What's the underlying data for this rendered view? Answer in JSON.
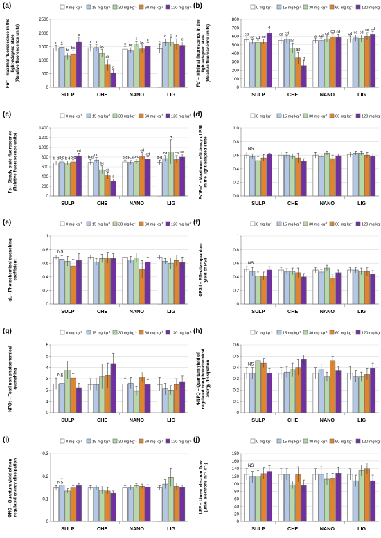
{
  "figure": {
    "categories": [
      "SULP",
      "CHE",
      "NANO",
      "LIG"
    ],
    "legend": [
      {
        "label": "0 mg kg",
        "sup": "-1",
        "color": "#ffffff"
      },
      {
        "label": "15 mg kg",
        "sup": "-1",
        "color": "#b4c8e6"
      },
      {
        "label": "30 mg kg",
        "sup": "-1",
        "color": "#b7d7a8"
      },
      {
        "label": "60 mg kg",
        "sup": "-1",
        "color": "#e0852f"
      },
      {
        "label": "120 mg kg",
        "sup": "-1",
        "color": "#7030a0"
      }
    ]
  },
  "chart_data": [
    {
      "panel": "(a)",
      "type": "bar",
      "ylabel": [
        "Fm' – Maximal fluorescence in the",
        "light-adapted state",
        "(Relative fluorescence units)"
      ],
      "ylim": [
        0,
        2500
      ],
      "yticks": [
        "0",
        "500",
        "1000",
        "1500",
        "2000",
        "2500"
      ],
      "categories": [
        "SULP",
        "CHE",
        "NANO",
        "LIG"
      ],
      "series": [
        {
          "name": "0 mg kg-1",
          "values": [
            1440,
            1450,
            1400,
            1420
          ],
          "errors": [
            100,
            130,
            100,
            150
          ]
        },
        {
          "name": "15 mg kg-1",
          "values": [
            1470,
            1460,
            1360,
            1650
          ],
          "errors": [
            100,
            120,
            90,
            130
          ]
        },
        {
          "name": "30 mg kg-1",
          "values": [
            1150,
            1250,
            1600,
            1660
          ],
          "errors": [
            120,
            150,
            100,
            160
          ]
        },
        {
          "name": "60 mg kg-1",
          "values": [
            1220,
            820,
            1410,
            1580
          ],
          "errors": [
            130,
            200,
            150,
            200
          ]
        },
        {
          "name": "120 mg kg-1",
          "values": [
            1680,
            530,
            1500,
            1540
          ],
          "errors": [
            160,
            120,
            140,
            130
          ]
        }
      ],
      "letters": [
        [
          "c",
          "c",
          "bc",
          "bc",
          "c"
        ],
        [
          "c",
          "c",
          "bc",
          "ab",
          "a"
        ],
        [
          "c",
          "bc",
          "c",
          "bc",
          "c"
        ],
        [
          "c",
          "c",
          "c",
          "c",
          "c"
        ]
      ]
    },
    {
      "panel": "(b)",
      "type": "bar",
      "ylabel": [
        "Fo' – Minimal fluorescence in the",
        "light-adapted state",
        "(Relative fluorescence units)"
      ],
      "ylim": [
        0,
        800
      ],
      "yticks": [
        "0",
        "100",
        "200",
        "300",
        "400",
        "500",
        "600",
        "700",
        "800"
      ],
      "categories": [
        "SULP",
        "CHE",
        "NANO",
        "LIG"
      ],
      "series": [
        {
          "name": "0 mg kg-1",
          "values": [
            560,
            550,
            550,
            565
          ],
          "errors": [
            30,
            40,
            30,
            40
          ]
        },
        {
          "name": "15 mg kg-1",
          "values": [
            535,
            565,
            550,
            580
          ],
          "errors": [
            25,
            45,
            30,
            35
          ]
        },
        {
          "name": "30 mg kg-1",
          "values": [
            530,
            460,
            570,
            575
          ],
          "errors": [
            25,
            60,
            35,
            40
          ]
        },
        {
          "name": "60 mg kg-1",
          "values": [
            535,
            345,
            590,
            600
          ],
          "errors": [
            30,
            70,
            40,
            45
          ]
        },
        {
          "name": "120 mg kg-1",
          "values": [
            635,
            255,
            585,
            625
          ],
          "errors": [
            40,
            60,
            40,
            35
          ]
        }
      ],
      "letters": [
        [
          "cd",
          "cd",
          "cd",
          "cd",
          "d"
        ],
        [
          "cd",
          "cd",
          "bc",
          "ab",
          "a"
        ],
        [
          "cd",
          "cd",
          "cd",
          "cd",
          "cd"
        ],
        [
          "cd",
          "cd",
          "cd",
          "cd",
          "cd"
        ]
      ]
    },
    {
      "panel": "(c)",
      "type": "bar",
      "ylabel": [
        "Fs – Steady-state fluorescence",
        "(Relative fluorescence units)"
      ],
      "ylim": [
        0,
        1400
      ],
      "yticks": [
        "0",
        "200",
        "400",
        "600",
        "800",
        "1000",
        "1200",
        "1400"
      ],
      "categories": [
        "SULP",
        "CHE",
        "NANO",
        "LIG"
      ],
      "series": [
        {
          "name": "0 mg kg-1",
          "values": [
            680,
            690,
            700,
            690
          ],
          "errors": [
            40,
            60,
            40,
            50
          ]
        },
        {
          "name": "15 mg kg-1",
          "values": [
            700,
            740,
            690,
            770
          ],
          "errors": [
            45,
            50,
            40,
            60
          ]
        },
        {
          "name": "30 mg kg-1",
          "values": [
            680,
            540,
            710,
            910
          ],
          "errors": [
            40,
            80,
            50,
            250
          ]
        },
        {
          "name": "60 mg kg-1",
          "values": [
            700,
            420,
            820,
            750
          ],
          "errors": [
            45,
            60,
            70,
            80
          ]
        },
        {
          "name": "120 mg kg-1",
          "values": [
            820,
            300,
            760,
            800
          ],
          "errors": [
            60,
            50,
            50,
            60
          ]
        }
      ],
      "letters": [
        [
          "b-d",
          "b-d",
          "b-d",
          "b-d",
          "cd"
        ],
        [
          "b-d",
          "cd",
          "bc",
          "ab",
          "a"
        ],
        [
          "b-d",
          "b-d",
          "b-d",
          "cd",
          "cd"
        ],
        [
          "b-d",
          "cd",
          "d",
          "cd",
          "cd"
        ]
      ]
    },
    {
      "panel": "(d)",
      "type": "bar",
      "ylabel": [
        "Fv'/Fm' – Maximum efficiency of PSII",
        "in the light-adapted state"
      ],
      "ylim": [
        0,
        1.0
      ],
      "yticks": [
        "0.0",
        "0.2",
        "0.4",
        "0.6",
        "0.8",
        "1.0"
      ],
      "categories": [
        "SULP",
        "CHE",
        "NANO",
        "LIG"
      ],
      "series": [
        {
          "name": "0 mg kg-1",
          "values": [
            0.6,
            0.6,
            0.6,
            0.61
          ],
          "errors": [
            0.05,
            0.05,
            0.04,
            0.04
          ]
        },
        {
          "name": "15 mg kg-1",
          "values": [
            0.58,
            0.6,
            0.58,
            0.63
          ],
          "errors": [
            0.04,
            0.04,
            0.04,
            0.03
          ]
        },
        {
          "name": "30 mg kg-1",
          "values": [
            0.52,
            0.58,
            0.63,
            0.63
          ],
          "errors": [
            0.06,
            0.04,
            0.03,
            0.03
          ]
        },
        {
          "name": "60 mg kg-1",
          "values": [
            0.56,
            0.56,
            0.55,
            0.6
          ],
          "errors": [
            0.05,
            0.07,
            0.05,
            0.04
          ]
        },
        {
          "name": "120 mg kg-1",
          "values": [
            0.61,
            0.51,
            0.59,
            0.58
          ],
          "errors": [
            0.02,
            0.04,
            0.03,
            0.04
          ]
        }
      ],
      "annotation": "NS"
    },
    {
      "panel": "(e)",
      "type": "bar",
      "ylabel": [
        "qL – Photochemical quenching",
        "coefficient"
      ],
      "ylim": [
        0,
        1.0
      ],
      "yticks": [
        "0",
        "0.2",
        "0.4",
        "0.6",
        "0.8",
        "1"
      ],
      "categories": [
        "SULP",
        "CHE",
        "NANO",
        "LIG"
      ],
      "series": [
        {
          "name": "0 mg kg-1",
          "values": [
            0.69,
            0.69,
            0.69,
            0.69
          ],
          "errors": [
            0.03,
            0.03,
            0.03,
            0.03
          ]
        },
        {
          "name": "15 mg kg-1",
          "values": [
            0.66,
            0.62,
            0.65,
            0.63
          ],
          "errors": [
            0.05,
            0.05,
            0.05,
            0.04
          ]
        },
        {
          "name": "30 mg kg-1",
          "values": [
            0.63,
            0.67,
            0.68,
            0.6
          ],
          "errors": [
            0.07,
            0.06,
            0.07,
            0.08
          ]
        },
        {
          "name": "60 mg kg-1",
          "values": [
            0.56,
            0.68,
            0.51,
            0.64
          ],
          "errors": [
            0.1,
            0.08,
            0.13,
            0.08
          ]
        },
        {
          "name": "120 mg kg-1",
          "values": [
            0.64,
            0.67,
            0.62,
            0.61
          ],
          "errors": [
            0.1,
            0.07,
            0.07,
            0.08
          ]
        }
      ],
      "annotation": "NS"
    },
    {
      "panel": "(f)",
      "type": "bar",
      "ylabel": [
        "ΦPSII – Effective quantum",
        "yield of PSII"
      ],
      "ylim": [
        0,
        1.0
      ],
      "yticks": [
        "0",
        "0.2",
        "0.4",
        "0.6",
        "0.8",
        "1"
      ],
      "categories": [
        "SULP",
        "CHE",
        "NANO",
        "LIG"
      ],
      "series": [
        {
          "name": "0 mg kg-1",
          "values": [
            0.51,
            0.5,
            0.5,
            0.5
          ],
          "errors": [
            0.04,
            0.04,
            0.04,
            0.04
          ]
        },
        {
          "name": "15 mg kg-1",
          "values": [
            0.48,
            0.48,
            0.47,
            0.5
          ],
          "errors": [
            0.06,
            0.04,
            0.04,
            0.04
          ]
        },
        {
          "name": "30 mg kg-1",
          "values": [
            0.41,
            0.48,
            0.53,
            0.48
          ],
          "errors": [
            0.06,
            0.05,
            0.04,
            0.05
          ]
        },
        {
          "name": "60 mg kg-1",
          "values": [
            0.41,
            0.46,
            0.38,
            0.48
          ],
          "errors": [
            0.06,
            0.07,
            0.06,
            0.06
          ]
        },
        {
          "name": "120 mg kg-1",
          "values": [
            0.5,
            0.4,
            0.46,
            0.44
          ],
          "errors": [
            0.05,
            0.05,
            0.04,
            0.05
          ]
        }
      ],
      "annotation": "NS"
    },
    {
      "panel": "(g)",
      "type": "bar",
      "ylabel": [
        "NPQt – Total non-photochemical",
        "quenching"
      ],
      "ylim": [
        0,
        6
      ],
      "yticks": [
        "0",
        "1",
        "2",
        "3",
        "4",
        "5",
        "6"
      ],
      "categories": [
        "SULP",
        "CHE",
        "NANO",
        "LIG"
      ],
      "series": [
        {
          "name": "0 mg kg-1",
          "values": [
            2.55,
            2.5,
            2.55,
            2.5
          ],
          "errors": [
            0.5,
            0.5,
            0.5,
            0.6
          ]
        },
        {
          "name": "15 mg kg-1",
          "values": [
            2.6,
            2.5,
            2.6,
            2.1
          ],
          "errors": [
            0.6,
            0.5,
            0.5,
            0.5
          ]
        },
        {
          "name": "30 mg kg-1",
          "values": [
            3.75,
            3.2,
            1.9,
            2.0
          ],
          "errors": [
            0.8,
            1.1,
            0.4,
            0.4
          ]
        },
        {
          "name": "60 mg kg-1",
          "values": [
            3.05,
            3.3,
            3.15,
            2.5
          ],
          "errors": [
            0.4,
            1.1,
            0.4,
            0.5
          ]
        },
        {
          "name": "120 mg kg-1",
          "values": [
            2.2,
            4.35,
            2.5,
            2.75
          ],
          "errors": [
            0.4,
            0.9,
            0.4,
            0.5
          ]
        }
      ],
      "annotation": "NS"
    },
    {
      "panel": "(h)",
      "type": "bar",
      "ylabel": [
        "ΦNPQ – Quantum yield of",
        "regulated non-photochemical",
        "energy dissipation"
      ],
      "ylim": [
        0,
        0.6
      ],
      "yticks": [
        "0",
        "0.1",
        "0.2",
        "0.3",
        "0.4",
        "0.5",
        "0.6"
      ],
      "categories": [
        "SULP",
        "CHE",
        "NANO",
        "LIG"
      ],
      "series": [
        {
          "name": "0 mg kg-1",
          "values": [
            0.35,
            0.35,
            0.35,
            0.35
          ],
          "errors": [
            0.05,
            0.05,
            0.05,
            0.06
          ]
        },
        {
          "name": "15 mg kg-1",
          "values": [
            0.35,
            0.36,
            0.38,
            0.32
          ],
          "errors": [
            0.05,
            0.05,
            0.05,
            0.05
          ]
        },
        {
          "name": "30 mg kg-1",
          "values": [
            0.46,
            0.38,
            0.32,
            0.32
          ],
          "errors": [
            0.05,
            0.06,
            0.04,
            0.04
          ]
        },
        {
          "name": "60 mg kg-1",
          "values": [
            0.44,
            0.4,
            0.46,
            0.34
          ],
          "errors": [
            0.04,
            0.07,
            0.04,
            0.05
          ]
        },
        {
          "name": "120 mg kg-1",
          "values": [
            0.35,
            0.47,
            0.37,
            0.39
          ],
          "errors": [
            0.04,
            0.04,
            0.04,
            0.05
          ]
        }
      ],
      "annotation": "NS"
    },
    {
      "panel": "(i)",
      "type": "bar",
      "ylabel": [
        "ΦNO – Quantum yield of non-",
        "regulated energy dissipation"
      ],
      "ylim": [
        0,
        0.3
      ],
      "yticks": [
        "0",
        "0.1",
        "0.2",
        "0.3"
      ],
      "categories": [
        "SULP",
        "CHE",
        "NANO",
        "LIG"
      ],
      "series": [
        {
          "name": "0 mg kg-1",
          "values": [
            0.148,
            0.148,
            0.148,
            0.148
          ],
          "errors": [
            0.01,
            0.01,
            0.01,
            0.01
          ]
        },
        {
          "name": "15 mg kg-1",
          "values": [
            0.16,
            0.15,
            0.15,
            0.165
          ],
          "errors": [
            0.03,
            0.01,
            0.01,
            0.02
          ]
        },
        {
          "name": "30 mg kg-1",
          "values": [
            0.135,
            0.138,
            0.158,
            0.195
          ],
          "errors": [
            0.01,
            0.015,
            0.01,
            0.04
          ]
        },
        {
          "name": "60 mg kg-1",
          "values": [
            0.148,
            0.135,
            0.155,
            0.155
          ],
          "errors": [
            0.01,
            0.015,
            0.01,
            0.015
          ]
        },
        {
          "name": "120 mg kg-1",
          "values": [
            0.158,
            0.125,
            0.152,
            0.15
          ],
          "errors": [
            0.01,
            0.01,
            0.01,
            0.01
          ]
        }
      ],
      "annotation": "NS"
    },
    {
      "panel": "(j)",
      "type": "bar",
      "ylabel": [
        "LEF – Linear electron flow",
        "(μmol electrons m⁻² s⁻¹)"
      ],
      "ylim": [
        0,
        180
      ],
      "yticks": [
        "0",
        "20",
        "40",
        "60",
        "80",
        "100",
        "120",
        "140",
        "160",
        "180"
      ],
      "categories": [
        "SULP",
        "CHE",
        "NANO",
        "LIG"
      ],
      "series": [
        {
          "name": "0 mg kg-1",
          "values": [
            125,
            125,
            125,
            125
          ],
          "errors": [
            15,
            15,
            15,
            15
          ]
        },
        {
          "name": "15 mg kg-1",
          "values": [
            118,
            125,
            125,
            108
          ],
          "errors": [
            15,
            15,
            20,
            15
          ]
        },
        {
          "name": "30 mg kg-1",
          "values": [
            120,
            97,
            112,
            135
          ],
          "errors": [
            15,
            10,
            15,
            15
          ]
        },
        {
          "name": "60 mg kg-1",
          "values": [
            127,
            125,
            113,
            140
          ],
          "errors": [
            15,
            20,
            15,
            15
          ]
        },
        {
          "name": "120 mg kg-1",
          "values": [
            133,
            95,
            128,
            108
          ],
          "errors": [
            15,
            15,
            15,
            15
          ]
        }
      ],
      "annotation": "NS"
    }
  ]
}
